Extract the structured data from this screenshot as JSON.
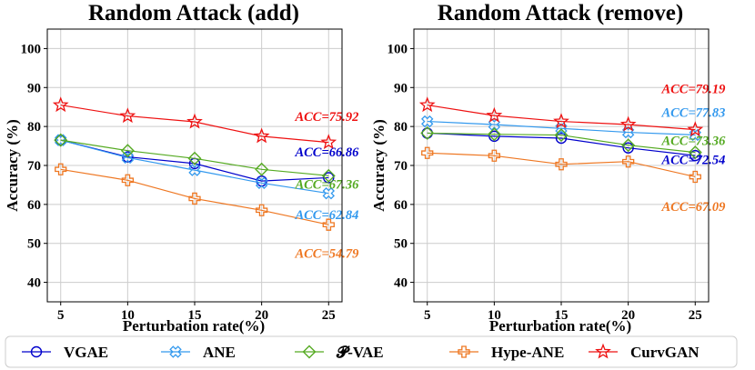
{
  "chart_data": [
    {
      "type": "line",
      "title": "Random Attack (add)",
      "xlabel": "Perturbation rate(%)",
      "ylabel": "Accuracy (%)",
      "x": [
        5,
        10,
        15,
        20,
        25
      ],
      "ylim": [
        35,
        105
      ],
      "yticks": [
        40,
        50,
        60,
        70,
        80,
        90,
        100
      ],
      "grid": true,
      "series": [
        {
          "name": "VGAE",
          "values": [
            76.5,
            72.2,
            70.5,
            66.0,
            66.86
          ]
        },
        {
          "name": "ANE",
          "values": [
            76.5,
            72.0,
            68.8,
            65.5,
            62.84
          ]
        },
        {
          "name": "P-VAE",
          "values": [
            76.5,
            73.8,
            71.8,
            69.0,
            67.36
          ]
        },
        {
          "name": "Hype-ANE",
          "values": [
            69.0,
            66.2,
            61.5,
            58.5,
            54.79
          ]
        },
        {
          "name": "CurvGAN",
          "values": [
            85.5,
            82.7,
            81.2,
            77.5,
            75.92
          ]
        }
      ],
      "annotations": [
        {
          "series": "CurvGAN",
          "text": "ACC=75.92",
          "x": 22.5,
          "y": 81.4
        },
        {
          "series": "VGAE",
          "text": "ACC=66.86",
          "x": 22.5,
          "y": 72.3
        },
        {
          "series": "P-VAE",
          "text": "ACC=67.36",
          "x": 22.5,
          "y": 64.0
        },
        {
          "series": "ANE",
          "text": "ACC=62.84",
          "x": 22.5,
          "y": 56.2
        },
        {
          "series": "Hype-ANE",
          "text": "ACC=54.79",
          "x": 22.5,
          "y": 46.3
        }
      ]
    },
    {
      "type": "line",
      "title": "Random Attack (remove)",
      "xlabel": "Perturbation rate(%)",
      "ylabel": "Accuracy (%)",
      "x": [
        5,
        10,
        15,
        20,
        25
      ],
      "ylim": [
        35,
        105
      ],
      "yticks": [
        40,
        50,
        60,
        70,
        80,
        90,
        100
      ],
      "grid": true,
      "series": [
        {
          "name": "VGAE",
          "values": [
            78.3,
            77.5,
            77.0,
            74.5,
            72.54
          ]
        },
        {
          "name": "ANE",
          "values": [
            81.3,
            80.5,
            79.5,
            78.5,
            77.83
          ]
        },
        {
          "name": "P-VAE",
          "values": [
            78.3,
            78.0,
            77.8,
            75.2,
            73.36
          ]
        },
        {
          "name": "Hype-ANE",
          "values": [
            73.2,
            72.5,
            70.3,
            71.0,
            67.09
          ]
        },
        {
          "name": "CurvGAN",
          "values": [
            85.5,
            82.8,
            81.3,
            80.5,
            79.19
          ]
        }
      ],
      "annotations": [
        {
          "series": "CurvGAN",
          "text": "ACC=79.19",
          "x": 22.5,
          "y": 88.5
        },
        {
          "series": "ANE",
          "text": "ACC=77.83",
          "x": 22.5,
          "y": 82.5
        },
        {
          "series": "P-VAE",
          "text": "ACC=73.36",
          "x": 22.5,
          "y": 75.3
        },
        {
          "series": "VGAE",
          "text": "ACC=72.54",
          "x": 22.5,
          "y": 70.3
        },
        {
          "series": "Hype-ANE",
          "text": "ACC=67.09",
          "x": 22.5,
          "y": 58.3
        }
      ]
    }
  ],
  "legend": {
    "position": "bottom",
    "items": [
      {
        "name": "VGAE",
        "label": "VGAE",
        "color": "#0000cc",
        "marker": "circle"
      },
      {
        "name": "ANE",
        "label": "ANE",
        "color": "#3399ee",
        "marker": "x-filled"
      },
      {
        "name": "P-VAE",
        "label": "𝓟-VAE",
        "color": "#55aa22",
        "marker": "diamond"
      },
      {
        "name": "Hype-ANE",
        "label": "Hype-ANE",
        "color": "#ee7722",
        "marker": "plus-filled"
      },
      {
        "name": "CurvGAN",
        "label": "CurvGAN",
        "color": "#ee1111",
        "marker": "star"
      }
    ]
  }
}
